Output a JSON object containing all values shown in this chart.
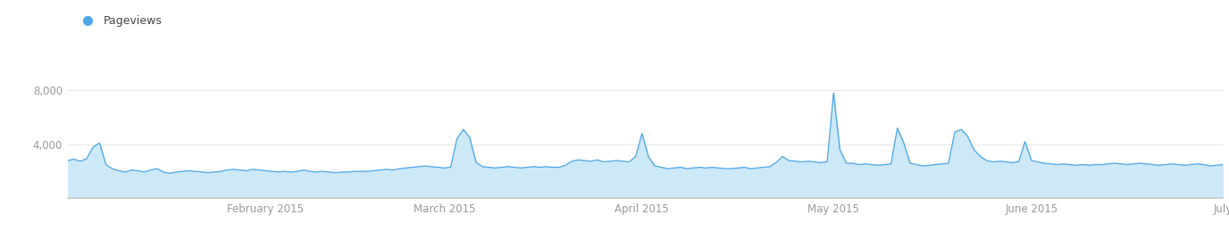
{
  "legend_label": "Pageviews",
  "legend_color": "#4da6e8",
  "line_color": "#4da6e8",
  "fill_color": "#cde8f7",
  "background_color": "#ffffff",
  "grid_color": "#e5e5e5",
  "ylim": [
    0,
    8800
  ],
  "yticks": [
    4000,
    8000
  ],
  "ytick_labels": [
    "4,000",
    "8,000"
  ],
  "xtick_labels": [
    "February 2015",
    "March 2015",
    "April 2015",
    "May 2015",
    "June 2015",
    "July"
  ],
  "xtick_months": [
    2,
    3,
    4,
    5,
    6,
    7
  ],
  "values": [
    2800,
    2900,
    2750,
    2950,
    3800,
    4100,
    2500,
    2200,
    2050,
    1950,
    2100,
    2050,
    1950,
    2100,
    2200,
    1950,
    1850,
    1950,
    2000,
    2050,
    2000,
    1950,
    1900,
    1950,
    2000,
    2100,
    2150,
    2100,
    2050,
    2150,
    2100,
    2050,
    2000,
    1950,
    2000,
    1950,
    2000,
    2100,
    2000,
    1950,
    2000,
    1950,
    1900,
    1950,
    1950,
    2000,
    2000,
    2000,
    2050,
    2100,
    2150,
    2100,
    2200,
    2250,
    2300,
    2350,
    2400,
    2350,
    2300,
    2250,
    2300,
    4400,
    5100,
    4500,
    2650,
    2350,
    2300,
    2250,
    2300,
    2350,
    2300,
    2250,
    2300,
    2350,
    2300,
    2350,
    2300,
    2300,
    2450,
    2750,
    2850,
    2800,
    2750,
    2850,
    2700,
    2750,
    2800,
    2750,
    2700,
    3100,
    4800,
    3100,
    2400,
    2300,
    2200,
    2250,
    2300,
    2200,
    2250,
    2300,
    2250,
    2300,
    2250,
    2200,
    2200,
    2250,
    2300,
    2200,
    2250,
    2300,
    2350,
    2650,
    3100,
    2800,
    2750,
    2700,
    2750,
    2700,
    2650,
    2700,
    7800,
    3600,
    2600,
    2600,
    2500,
    2550,
    2500,
    2450,
    2500,
    2550,
    5200,
    4100,
    2600,
    2500,
    2400,
    2450,
    2500,
    2550,
    2600,
    4900,
    5100,
    4600,
    3600,
    3100,
    2800,
    2700,
    2750,
    2700,
    2650,
    2700,
    4200,
    2800,
    2700,
    2600,
    2550,
    2500,
    2550,
    2500,
    2450,
    2500,
    2450,
    2500,
    2500,
    2550,
    2600,
    2550,
    2500,
    2550,
    2600,
    2550,
    2500,
    2450,
    2500,
    2550,
    2500,
    2450,
    2500,
    2550,
    2500,
    2400,
    2450,
    2500
  ]
}
